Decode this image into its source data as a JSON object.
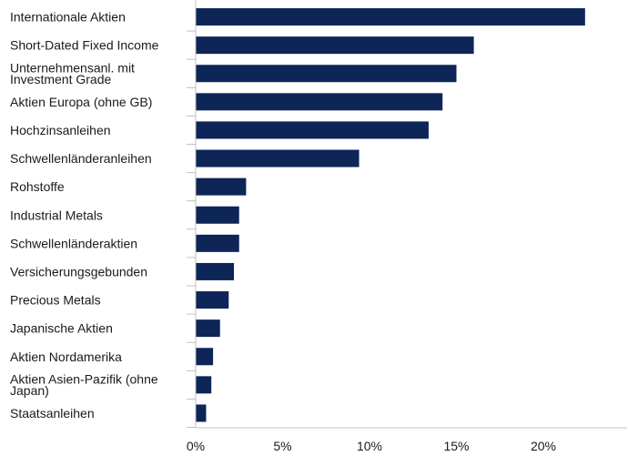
{
  "chart_data": {
    "type": "bar",
    "orientation": "horizontal",
    "categories": [
      "Internationale Aktien",
      "Short-Dated Fixed Income",
      "Unternehmensanl. mit\nInvestment Grade",
      "Aktien Europa (ohne GB)",
      "Hochzinsanleihen",
      "Schwellenländeranleihen",
      "Rohstoffe",
      "Industrial Metals",
      "Schwellenländeraktien",
      "Versicherungsgebunden",
      "Precious Metals",
      "Japanische Aktien",
      "Aktien Nordamerika",
      "Aktien Asien-Pazifik (ohne\nJapan)",
      "Staatsanleihen"
    ],
    "values": [
      22.4,
      16.0,
      15.0,
      14.2,
      13.4,
      9.4,
      2.9,
      2.5,
      2.5,
      2.2,
      1.9,
      1.4,
      1.0,
      0.9,
      0.6
    ],
    "xlim": [
      0,
      24
    ],
    "xticks": [
      {
        "value": 0,
        "label": "0%"
      },
      {
        "value": 5,
        "label": "5%"
      },
      {
        "value": 10,
        "label": "10%"
      },
      {
        "value": 15,
        "label": "15%"
      },
      {
        "value": 20,
        "label": "20%"
      }
    ],
    "title": "",
    "xlabel": "",
    "ylabel": "",
    "grid": false,
    "legend": "none",
    "bar_color": "#0d2557",
    "axis_color": "#c0c0c0"
  }
}
